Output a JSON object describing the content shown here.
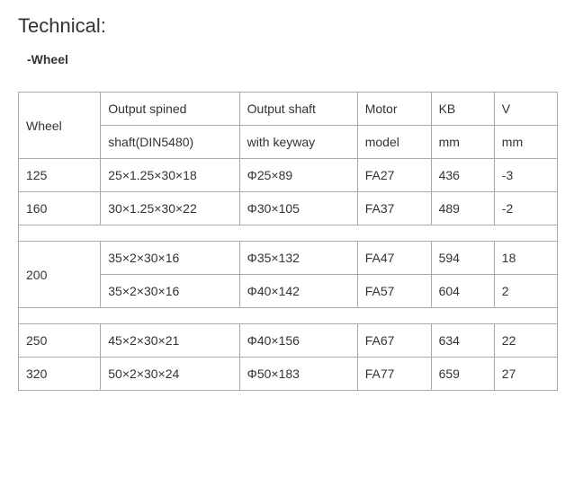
{
  "title": "Technical:",
  "subtitle": "-Wheel",
  "headers": {
    "row1": {
      "wheel": "Wheel",
      "spined": "Output spined",
      "shaft": "Output shaft",
      "motor": "Motor",
      "kb": "KB",
      "v": "V"
    },
    "row2": {
      "spined": "shaft(DIN5480)",
      "shaft": "with keyway",
      "motor": "model",
      "kb": "mm",
      "v": "mm"
    }
  },
  "rows": [
    {
      "wheel": "125",
      "spined": "25×1.25×30×18",
      "shaft": "Φ25×89",
      "motor": "FA27",
      "kb": "436",
      "v": "-3"
    },
    {
      "wheel": "160",
      "spined": "30×1.25×30×22",
      "shaft": "Φ30×105",
      "motor": "FA37",
      "kb": "489",
      "v": "-2"
    },
    {
      "wheel": "200",
      "spined": "35×2×30×16",
      "shaft": "Φ35×132",
      "motor": "FA47",
      "kb": "594",
      "v": "18"
    },
    {
      "spined": "35×2×30×16",
      "shaft": "Φ40×142",
      "motor": "FA57",
      "kb": "604",
      "v": "2"
    },
    {
      "wheel": "250",
      "spined": "45×2×30×21",
      "shaft": "Φ40×156",
      "motor": "FA67",
      "kb": "634",
      "v": "22"
    },
    {
      "wheel": "320",
      "spined": "50×2×30×24",
      "shaft": "Φ50×183",
      "motor": "FA77",
      "kb": "659",
      "v": "27"
    }
  ]
}
